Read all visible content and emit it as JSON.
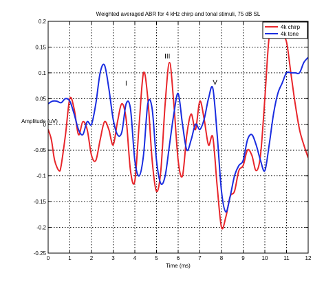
{
  "chart_data": {
    "type": "line",
    "title": "Weighted averaged ABR for 4 kHz chirp and tonal stimuli, 75 dB SL",
    "xlabel": "Time (ms)",
    "ylabel": "Amplitude (uV)",
    "xlim": [
      0,
      12
    ],
    "ylim": [
      -0.25,
      0.2
    ],
    "xticks": [
      "0",
      "1",
      "2",
      "3",
      "4",
      "5",
      "6",
      "7",
      "8",
      "9",
      "10",
      "11",
      "12"
    ],
    "yticks": [
      "0.2",
      "0.15",
      "0.1",
      "0.05",
      "0",
      "-0.05",
      "-0.1",
      "-0.15",
      "-0.2",
      "-0.25"
    ],
    "grid": true,
    "legend_position": "top-right",
    "annotations": [
      {
        "text": "I",
        "x": 3.6,
        "y": 0.075
      },
      {
        "text": "III",
        "x": 5.5,
        "y": 0.128
      },
      {
        "text": "V",
        "x": 7.7,
        "y": 0.077
      }
    ],
    "series": [
      {
        "name": "4k chirp",
        "color": "#e8262b",
        "x": [
          0,
          0.15,
          0.3,
          0.5,
          0.6,
          0.8,
          1.0,
          1.2,
          1.4,
          1.6,
          1.8,
          2.0,
          2.2,
          2.4,
          2.6,
          2.8,
          3.0,
          3.2,
          3.4,
          3.6,
          3.8,
          4.0,
          4.2,
          4.4,
          4.6,
          4.8,
          5.0,
          5.2,
          5.4,
          5.6,
          5.8,
          6.0,
          6.2,
          6.4,
          6.6,
          6.8,
          7.0,
          7.2,
          7.4,
          7.6,
          7.8,
          8.0,
          8.2,
          8.4,
          8.6,
          8.8,
          9.0,
          9.2,
          9.4,
          9.6,
          9.8,
          10.0,
          10.2,
          10.4,
          10.6,
          10.8,
          11.0,
          11.2,
          11.4,
          11.6,
          11.8,
          12.0
        ],
        "y": [
          -0.01,
          -0.03,
          -0.07,
          -0.09,
          -0.08,
          -0.02,
          0.05,
          0.03,
          -0.02,
          0.005,
          -0.01,
          -0.06,
          -0.07,
          -0.03,
          0.005,
          -0.01,
          -0.04,
          0.005,
          0.04,
          0.01,
          -0.09,
          -0.11,
          0.0,
          0.1,
          0.05,
          -0.07,
          -0.13,
          -0.09,
          0.04,
          0.12,
          0.04,
          -0.07,
          -0.1,
          -0.02,
          0.02,
          -0.01,
          0.045,
          0.01,
          -0.04,
          -0.025,
          -0.12,
          -0.2,
          -0.18,
          -0.14,
          -0.13,
          -0.09,
          -0.08,
          -0.05,
          -0.06,
          -0.09,
          -0.06,
          0.05,
          0.17,
          0.18,
          0.175,
          0.17,
          0.16,
          0.1,
          0.04,
          -0.01,
          -0.04,
          -0.065
        ]
      },
      {
        "name": "4k tone",
        "color": "#1a2de0",
        "x": [
          0,
          0.2,
          0.4,
          0.6,
          0.8,
          1.0,
          1.2,
          1.4,
          1.6,
          1.8,
          2.0,
          2.2,
          2.4,
          2.6,
          2.8,
          3.0,
          3.2,
          3.4,
          3.6,
          3.8,
          4.0,
          4.2,
          4.4,
          4.6,
          4.8,
          5.0,
          5.2,
          5.4,
          5.6,
          5.8,
          6.0,
          6.2,
          6.4,
          6.6,
          6.8,
          7.0,
          7.2,
          7.4,
          7.6,
          7.8,
          8.0,
          8.2,
          8.4,
          8.6,
          8.8,
          9.0,
          9.2,
          9.4,
          9.6,
          9.8,
          10.0,
          10.2,
          10.4,
          10.6,
          10.8,
          11.0,
          11.2,
          11.4,
          11.6,
          11.8,
          12.0
        ],
        "y": [
          0.04,
          0.045,
          0.045,
          0.042,
          0.05,
          0.045,
          0.02,
          -0.01,
          -0.02,
          0.005,
          0.0,
          0.04,
          0.1,
          0.115,
          0.07,
          0.01,
          -0.02,
          -0.015,
          0.04,
          0.03,
          -0.07,
          -0.1,
          -0.06,
          0.04,
          0.03,
          -0.07,
          -0.115,
          -0.1,
          -0.04,
          0.02,
          0.06,
          0.0,
          -0.05,
          -0.03,
          0.0,
          -0.01,
          0.01,
          0.05,
          0.07,
          -0.02,
          -0.13,
          -0.17,
          -0.14,
          -0.1,
          -0.08,
          -0.07,
          -0.03,
          -0.02,
          -0.04,
          -0.07,
          -0.09,
          -0.04,
          0.02,
          0.06,
          0.08,
          0.1,
          0.1,
          0.1,
          0.1,
          0.12,
          0.13
        ]
      }
    ]
  }
}
